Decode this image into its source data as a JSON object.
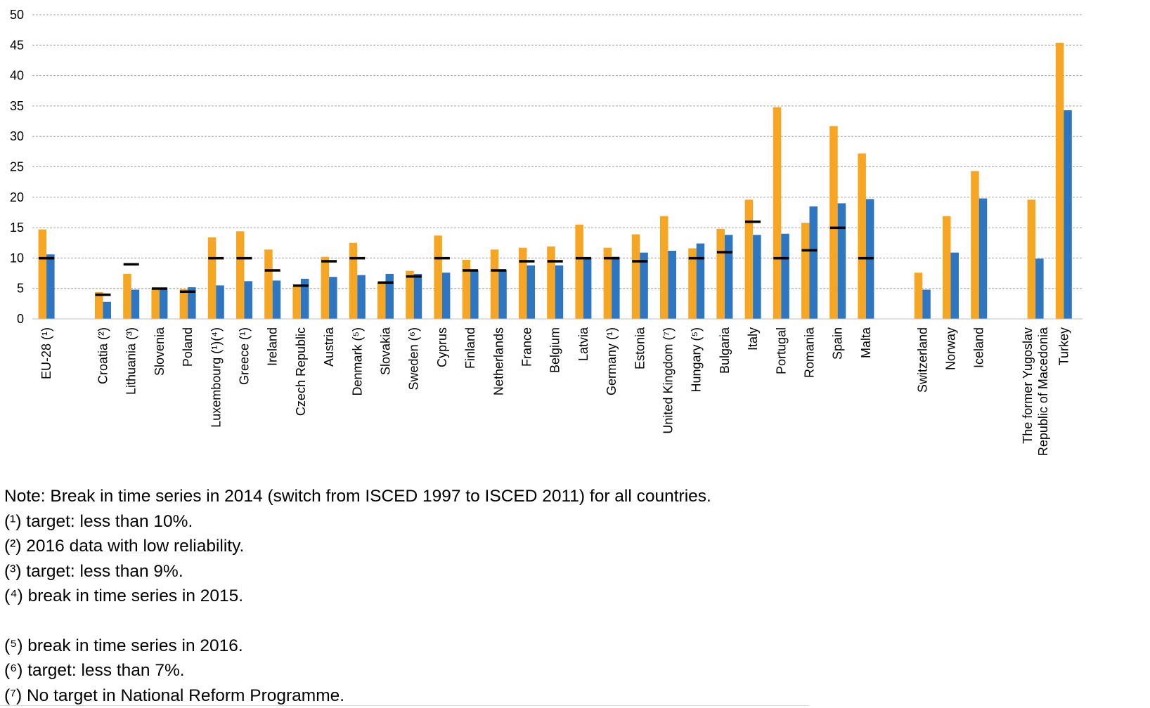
{
  "chart_data": {
    "type": "bar",
    "ylim": [
      0,
      50
    ],
    "yticks": [
      0,
      5,
      10,
      15,
      20,
      25,
      30,
      35,
      40,
      45,
      50
    ],
    "grid": true,
    "colors": {
      "orange": "#F6A623",
      "blue": "#2E75C2",
      "target": "#000000"
    },
    "groups": [
      [
        "EU-28 (¹)"
      ],
      [
        "Croatia (²)",
        "Lithuania (³)",
        "Slovenia",
        "Poland",
        "Luxembourg  (¹)(⁴)",
        "Greece (¹)",
        "Ireland",
        "Czech Republic",
        "Austria",
        "Denmark (⁵)",
        "Slovakia",
        "Sweden (⁶)",
        "Cyprus",
        "Finland",
        "Netherlands",
        "France",
        "Belgium",
        "Latvia",
        "Germany (¹)",
        "Estonia",
        "United Kingdom  (⁷)",
        "Hungary (⁵)",
        "Bulgaria",
        "Italy",
        "Portugal",
        "Romania",
        "Spain",
        "Malta"
      ],
      [
        "Switzerland",
        "Norway",
        "Iceland"
      ],
      [
        "The former Yugoslav Republic of Macedonia",
        "Turkey"
      ]
    ],
    "categories": [
      "EU-28 (¹)",
      "Croatia (²)",
      "Lithuania (³)",
      "Slovenia",
      "Poland",
      "Luxembourg  (¹)(⁴)",
      "Greece (¹)",
      "Ireland",
      "Czech Republic",
      "Austria",
      "Denmark (⁵)",
      "Slovakia",
      "Sweden (⁶)",
      "Cyprus",
      "Finland",
      "Netherlands",
      "France",
      "Belgium",
      "Latvia",
      "Germany (¹)",
      "Estonia",
      "United Kingdom  (⁷)",
      "Hungary (⁵)",
      "Bulgaria",
      "Italy",
      "Portugal",
      "Romania",
      "Spain",
      "Malta",
      "Switzerland",
      "Norway",
      "Iceland",
      "The former Yugoslav Republic of Macedonia",
      "Turkey"
    ],
    "series": [
      {
        "color": "#F6A623",
        "values": [
          14.7,
          4.4,
          7.4,
          5.0,
          4.9,
          13.4,
          14.4,
          11.4,
          5.4,
          10.2,
          12.5,
          6.0,
          7.9,
          13.7,
          9.7,
          11.4,
          11.7,
          11.9,
          15.5,
          11.7,
          13.9,
          16.9,
          11.6,
          14.8,
          19.6,
          34.8,
          15.8,
          31.7,
          27.2,
          7.6,
          16.9,
          24.3,
          19.6,
          45.4
        ]
      },
      {
        "color": "#2E75C2",
        "values": [
          10.6,
          2.8,
          4.8,
          4.9,
          5.2,
          5.5,
          6.2,
          6.3,
          6.6,
          6.9,
          7.2,
          7.4,
          7.4,
          7.6,
          7.9,
          8.0,
          8.8,
          8.8,
          10.0,
          10.2,
          10.9,
          11.2,
          12.4,
          13.8,
          13.8,
          14.0,
          18.5,
          19.0,
          19.7,
          4.8,
          10.9,
          19.8,
          9.9,
          34.3
        ]
      }
    ],
    "targets": [
      10,
      4,
      9,
      5,
      4.5,
      10,
      10,
      8,
      5.5,
      9.5,
      10,
      6,
      7,
      10,
      8,
      8,
      9.5,
      9.5,
      10,
      10,
      9.5,
      null,
      10,
      11,
      16,
      10,
      11.3,
      15,
      10,
      null,
      null,
      null,
      null,
      null
    ]
  },
  "notes": {
    "lines": [
      "Note: Break in time series in 2014 (switch from ISCED 1997 to ISCED 2011) for all countries.",
      "(¹) target: less than 10%.",
      "(²) 2016 data with low reliability.",
      "(³) target: less than 9%.",
      "(⁴) break in time series in 2015.",
      "(⁵) break in time series in 2016.",
      "(⁶) target: less than 7%.",
      "(⁷) No target in National Reform Programme."
    ]
  }
}
